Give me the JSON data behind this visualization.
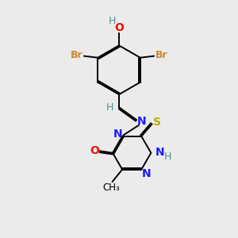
{
  "bg_color": "#ebebeb",
  "atom_colors": {
    "C": "#000000",
    "H": "#4a8f8f",
    "O": "#ee1100",
    "N": "#1a1aff",
    "S": "#bbaa00",
    "Br": "#cc8833"
  },
  "bond_color": "#000000",
  "lw": 1.4,
  "off": 0.06
}
